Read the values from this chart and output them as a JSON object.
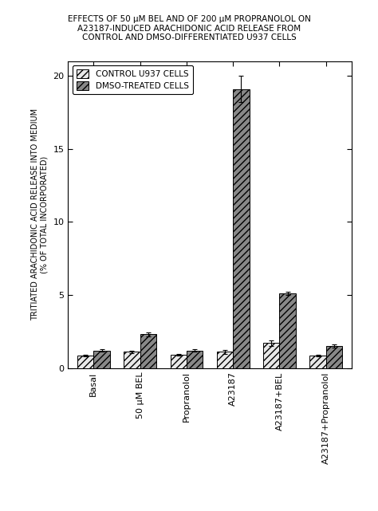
{
  "title_line1": "EFFECTS OF 50 μM BEL AND OF 200 μM PROPRANOLOL ON",
  "title_line2": "A23187-INDUCED ARACHIDONIC ACID RELEASE FROM",
  "title_line3": "CONTROL AND DMSO-DIFFERENTIATED U937 CELLS",
  "categories": [
    "Basal",
    "50 μM BEL",
    "Propranolol",
    "A23187",
    "A23187+BEL",
    "A23187+Propranolol"
  ],
  "control_values": [
    0.85,
    1.1,
    0.9,
    1.1,
    1.7,
    0.85
  ],
  "control_errors": [
    0.05,
    0.1,
    0.05,
    0.12,
    0.2,
    0.07
  ],
  "dmso_values": [
    1.2,
    2.3,
    1.2,
    19.1,
    5.1,
    1.5
  ],
  "dmso_errors": [
    0.07,
    0.12,
    0.07,
    0.9,
    0.1,
    0.1
  ],
  "ylabel_line1": "TRITIATED ARACHIDONIC ACID RELEASE INTO MEDIUM",
  "ylabel_line2": "(% OF TOTAL INCORPORATED)",
  "ylim": [
    0,
    21
  ],
  "yticks": [
    0,
    5,
    10,
    15,
    20
  ],
  "legend_label1": "CONTROL U937 CELLS",
  "legend_label2": "DMSO-TREATED CELLS",
  "control_hatch": "////",
  "dmso_hatch": "////",
  "bar_width": 0.35,
  "control_facecolor": "#e8e8e8",
  "dmso_facecolor": "#888888",
  "background_color": "#ffffff",
  "title_fontsize": 7.5,
  "axis_fontsize": 7.0,
  "tick_fontsize": 8,
  "legend_fontsize": 7.5
}
